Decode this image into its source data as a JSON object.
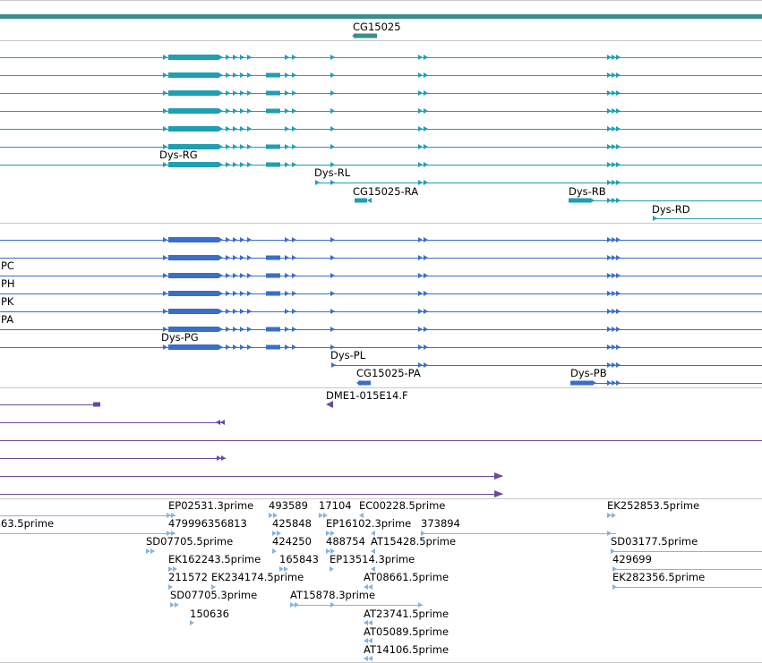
{
  "colors": {
    "gene": "#3a8e8e",
    "mrna": "#1e9fb3",
    "cds": "#3a6ec8",
    "clone": "#6a4a9a",
    "est": "#88b4d8",
    "separator": "#c8c8c8"
  },
  "tracks": {
    "gene": {
      "label": "CG15025"
    },
    "mrna": {
      "labels": [
        "Dys-RG",
        "Dys-RL",
        "CG15025-RA",
        "Dys-RB",
        "Dys-RD"
      ]
    },
    "cds": {
      "side_labels": [
        "PC",
        "PH",
        "PK",
        "PA"
      ],
      "labels": [
        "Dys-PG",
        "Dys-PL",
        "CG15025-PA",
        "Dys-PB"
      ]
    },
    "clones": {
      "label": "DME1-015E14.F"
    },
    "ests": {
      "labels": [
        "63.5prime",
        "EP02531.3prime",
        "479996356813",
        "493589",
        "425848",
        "17104",
        "EC00228.5prime",
        "EP16102.3prime",
        "373894",
        "SD07705.5prime",
        "424250",
        "488754",
        "AT15428.5prime",
        "EK162243.5prime",
        "165843",
        "EP13514.3prime",
        "211572",
        "EK234174.5prime",
        "AT08661.5prime",
        "SD07705.3prime",
        "AT15878.3prime",
        "150636",
        "AT23741.5prime",
        "AT05089.5prime",
        "AT14106.5prime",
        "EK252853.5prime",
        "SD03177.5prime",
        "429699",
        "EK282356.5prime"
      ]
    }
  }
}
